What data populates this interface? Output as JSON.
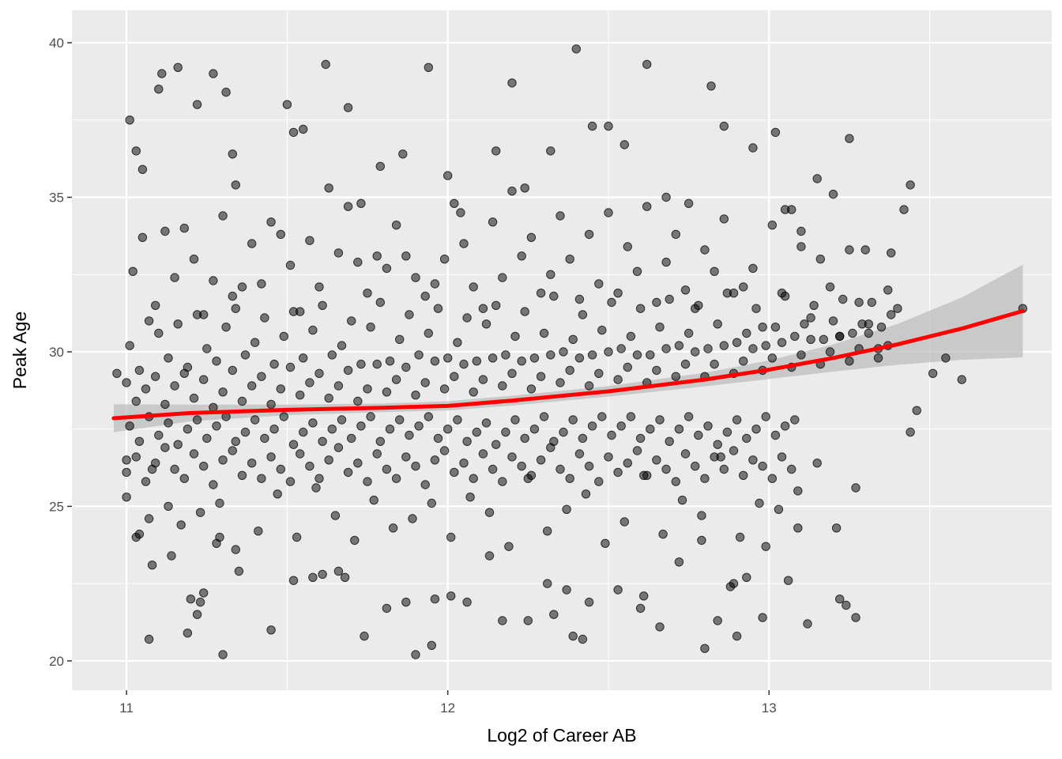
{
  "chart_data": {
    "type": "scatter",
    "title": "",
    "xlabel": "Log2 of Career AB",
    "ylabel": "Peak Age",
    "xlim": [
      10.83,
      13.88
    ],
    "ylim": [
      19.05,
      41.05
    ],
    "x_ticks": [
      11,
      12,
      13
    ],
    "x_tick_labels": [
      "11",
      "12",
      "13"
    ],
    "y_ticks": [
      20,
      25,
      30,
      35,
      40
    ],
    "y_tick_labels": [
      "20",
      "25",
      "30",
      "35",
      "40"
    ],
    "grid": true,
    "legend": "none",
    "colors": {
      "panel_background": "#ebebeb",
      "grid_line": "#ffffff",
      "point": "#000000",
      "smooth_line": "#ff0000",
      "confidence_band": "#bdbdbd"
    },
    "point_alpha": 0.5,
    "smooth": {
      "x": [
        10.96,
        11.2,
        11.5,
        11.8,
        12.0,
        12.2,
        12.5,
        12.8,
        13.0,
        13.2,
        13.4,
        13.6,
        13.79
      ],
      "y": [
        27.85,
        28.02,
        28.12,
        28.19,
        28.25,
        28.42,
        28.72,
        29.1,
        29.42,
        29.8,
        30.24,
        30.75,
        31.32
      ],
      "lower": [
        27.4,
        27.75,
        27.95,
        28.05,
        28.1,
        28.26,
        28.55,
        28.88,
        29.12,
        29.36,
        29.58,
        29.74,
        29.82
      ],
      "upper": [
        28.3,
        28.29,
        28.29,
        28.33,
        28.4,
        28.58,
        28.89,
        29.32,
        29.72,
        30.24,
        30.9,
        31.76,
        32.82
      ]
    },
    "series": [
      {
        "x": [
          11.07,
          11.08,
          11.23,
          11.19,
          11.24,
          11.3,
          11.61,
          11.68,
          11.9,
          11.95,
          12.17,
          12.33,
          12.37,
          12.39,
          12.6,
          12.8,
          12.88,
          12.89,
          12.9,
          12.98,
          13.27,
          13.44,
          13.51,
          13.79,
          11.03,
          11.05,
          11.01,
          11.11,
          11.1,
          11.16,
          11.22,
          11.27,
          11.31,
          11.33,
          11.34,
          11.5,
          11.52,
          11.55,
          11.62,
          11.69,
          11.73,
          11.79,
          11.86,
          11.94,
          12.0,
          12.04,
          12.15,
          12.2,
          12.24,
          12.32,
          12.4,
          12.45,
          12.5,
          12.55,
          12.62,
          12.68,
          12.75,
          12.82,
          12.86,
          12.95,
          13.02,
          13.05,
          13.1,
          13.15,
          13.2,
          13.25,
          13.3,
          13.38,
          13.42,
          13.44,
          13.46,
          13.55,
          13.6,
          11.07,
          11.14,
          11.2,
          11.22,
          11.28,
          11.29,
          11.35,
          11.45,
          11.52,
          11.58,
          11.66,
          11.74,
          11.81,
          11.87,
          11.96,
          12.01,
          12.06,
          12.13,
          12.25,
          12.31,
          12.42,
          12.44,
          12.53,
          12.61,
          12.66,
          12.72,
          12.79,
          12.84,
          12.93,
          12.99,
          13.06,
          13.09,
          13.12,
          13.22,
          13.24,
          10.97,
          11.0,
          11.03
        ],
        "y": [
          20.7,
          23.1,
          21.9,
          20.9,
          22.2,
          20.2,
          22.8,
          22.7,
          20.2,
          20.5,
          21.3,
          21.5,
          22.3,
          20.8,
          21.7,
          20.4,
          22.4,
          22.5,
          20.8,
          21.4,
          21.4,
          27.4,
          29.3,
          31.4,
          36.5,
          35.9,
          37.5,
          39.0,
          38.5,
          39.2,
          38.0,
          39.0,
          38.4,
          36.4,
          35.4,
          38.0,
          37.1,
          37.2,
          39.3,
          37.9,
          34.8,
          36.0,
          36.4,
          39.2,
          35.7,
          34.5,
          36.5,
          38.7,
          35.3,
          36.5,
          39.8,
          37.3,
          37.3,
          36.7,
          39.3,
          35.0,
          34.8,
          38.6,
          37.3,
          36.6,
          37.1,
          34.6,
          33.9,
          35.6,
          35.1,
          36.9,
          33.3,
          33.2,
          34.6,
          35.4,
          28.1,
          29.8,
          29.1,
          24.6,
          23.4,
          22.0,
          21.5,
          23.8,
          24.0,
          22.9,
          21.0,
          22.6,
          22.7,
          22.9,
          20.8,
          21.7,
          21.9,
          22.0,
          22.1,
          21.9,
          23.4,
          21.3,
          22.5,
          20.7,
          21.9,
          22.3,
          22.1,
          21.1,
          23.2,
          23.9,
          21.3,
          22.7,
          23.7,
          22.6,
          24.3,
          21.2,
          22.0,
          21.8,
          29.3,
          26.5,
          24.0
        ],
        "group": "sparse_outer"
      },
      {
        "x": [
          11.02,
          11.05,
          11.09,
          11.12,
          11.15,
          11.18,
          11.21,
          11.24,
          11.27,
          11.3,
          11.33,
          11.36,
          11.39,
          11.42,
          11.45,
          11.48,
          11.51,
          11.54,
          11.57,
          11.6,
          11.63,
          11.66,
          11.69,
          11.72,
          11.75,
          11.78,
          11.81,
          11.84,
          11.87,
          11.9,
          11.93,
          11.96,
          11.99,
          12.02,
          12.05,
          12.08,
          12.11,
          12.14,
          12.17,
          12.2,
          12.23,
          12.26,
          12.29,
          12.32,
          12.35,
          12.38,
          12.41,
          12.44,
          12.47,
          12.5,
          12.53,
          12.56,
          12.59,
          12.62,
          12.65,
          12.68,
          12.71,
          12.74,
          12.77,
          12.8,
          12.83,
          12.86,
          12.89,
          12.92,
          12.95,
          12.98,
          13.01,
          13.04,
          13.07,
          13.1,
          13.13,
          13.16,
          13.19,
          13.22,
          13.25,
          13.28,
          13.31,
          13.34,
          13.37,
          13.4,
          11.0,
          11.04,
          11.08,
          11.13,
          11.17,
          11.23,
          11.29,
          11.34,
          11.41,
          11.47,
          11.53,
          11.59,
          11.65,
          11.71,
          11.77,
          11.83,
          11.89,
          11.95,
          12.01,
          12.07,
          12.13,
          12.19,
          12.25,
          12.31,
          12.37,
          12.43,
          12.49,
          12.55,
          12.61,
          12.67,
          12.73,
          12.79,
          12.85,
          12.91,
          12.97,
          13.03,
          13.09,
          13.15,
          13.21,
          13.27
        ],
        "y": [
          32.6,
          33.7,
          31.5,
          33.9,
          32.4,
          34.0,
          33.0,
          31.2,
          32.3,
          34.4,
          31.8,
          32.1,
          33.5,
          32.2,
          34.2,
          33.8,
          32.8,
          31.3,
          33.6,
          32.1,
          35.3,
          33.2,
          34.7,
          32.9,
          31.9,
          33.1,
          32.7,
          34.1,
          33.1,
          32.4,
          31.8,
          32.2,
          33.0,
          34.8,
          33.5,
          32.1,
          31.4,
          34.2,
          32.4,
          35.2,
          33.1,
          33.7,
          31.9,
          32.5,
          34.4,
          33.0,
          31.7,
          33.8,
          32.2,
          34.5,
          31.9,
          33.4,
          32.6,
          34.7,
          31.6,
          32.9,
          33.8,
          32.0,
          31.4,
          33.3,
          32.6,
          34.3,
          31.9,
          32.1,
          32.7,
          30.8,
          34.1,
          31.9,
          34.6,
          33.4,
          31.1,
          33.0,
          32.1,
          30.5,
          33.3,
          31.6,
          30.9,
          30.1,
          32.0,
          31.4,
          25.3,
          24.1,
          26.2,
          25.0,
          24.4,
          24.8,
          25.1,
          23.6,
          24.2,
          25.4,
          24.0,
          25.6,
          24.7,
          23.9,
          25.2,
          24.3,
          24.6,
          25.1,
          24.0,
          25.3,
          24.8,
          23.7,
          25.9,
          24.2,
          24.9,
          25.4,
          23.8,
          24.5,
          26.0,
          24.1,
          25.2,
          24.7,
          26.6,
          24.0,
          25.1,
          24.9,
          25.5,
          26.4,
          24.3,
          25.6
        ],
        "group": "band_edges"
      },
      {
        "x": [
          11.01,
          11.04,
          11.07,
          11.1,
          11.13,
          11.16,
          11.19,
          11.22,
          11.25,
          11.28,
          11.31,
          11.34,
          11.37,
          11.4,
          11.43,
          11.46,
          11.49,
          11.52,
          11.55,
          11.58,
          11.61,
          11.64,
          11.67,
          11.7,
          11.73,
          11.76,
          11.79,
          11.82,
          11.85,
          11.88,
          11.91,
          11.94,
          11.97,
          12.0,
          12.03,
          12.06,
          12.09,
          12.12,
          12.15,
          12.18,
          12.21,
          12.24,
          12.27,
          12.3,
          12.33,
          12.36,
          12.39,
          12.42,
          12.45,
          12.48,
          12.51,
          12.54,
          12.57,
          12.6,
          12.63,
          12.66,
          12.69,
          12.72,
          12.75,
          12.78,
          12.81,
          12.84,
          12.87,
          12.9,
          12.93,
          12.96,
          12.99,
          13.02,
          13.05,
          13.08,
          13.11,
          13.14,
          13.17,
          13.2,
          13.23,
          13.26,
          13.29,
          13.32,
          13.35,
          13.38
        ],
        "y": [
          30.2,
          29.4,
          31.0,
          30.6,
          29.8,
          30.9,
          29.5,
          31.2,
          30.1,
          29.7,
          30.8,
          31.4,
          29.9,
          30.3,
          31.1,
          29.6,
          30.5,
          31.3,
          29.8,
          30.7,
          31.5,
          29.9,
          30.2,
          31.0,
          29.6,
          30.8,
          31.6,
          29.7,
          30.4,
          31.2,
          29.9,
          30.6,
          31.4,
          29.8,
          30.3,
          31.1,
          29.7,
          30.9,
          31.5,
          29.9,
          30.5,
          31.3,
          29.8,
          30.6,
          31.8,
          30.0,
          30.4,
          31.2,
          29.9,
          30.7,
          31.6,
          30.1,
          30.5,
          31.4,
          29.9,
          30.8,
          31.7,
          30.2,
          30.6,
          31.5,
          30.1,
          30.9,
          31.9,
          30.3,
          30.6,
          31.4,
          30.2,
          30.8,
          31.8,
          30.5,
          30.9,
          31.5,
          30.4,
          31.0,
          31.7,
          30.6,
          30.9,
          31.6,
          30.8,
          31.2
        ],
        "group": "upper_core"
      },
      {
        "x": [
          11.0,
          11.03,
          11.06,
          11.09,
          11.12,
          11.15,
          11.18,
          11.21,
          11.24,
          11.27,
          11.3,
          11.33,
          11.36,
          11.39,
          11.42,
          11.45,
          11.48,
          11.51,
          11.54,
          11.57,
          11.6,
          11.63,
          11.66,
          11.69,
          11.72,
          11.75,
          11.78,
          11.81,
          11.84,
          11.87,
          11.9,
          11.93,
          11.96,
          11.99,
          12.02,
          12.05,
          12.08,
          12.11,
          12.14,
          12.17,
          12.2,
          12.23,
          12.26,
          12.29,
          12.32,
          12.35,
          12.38,
          12.41,
          12.44,
          12.47,
          12.5,
          12.53,
          12.56,
          12.59,
          12.62,
          12.65,
          12.68,
          12.71,
          12.74,
          12.77,
          12.8,
          12.83,
          12.86,
          12.89,
          12.92,
          12.95,
          12.98,
          13.01,
          13.04,
          13.07,
          13.1,
          13.13,
          13.16,
          13.19,
          13.22,
          13.25,
          13.28,
          13.31,
          13.34,
          13.37
        ],
        "y": [
          29.0,
          28.4,
          28.8,
          29.2,
          28.3,
          28.9,
          29.3,
          28.5,
          29.1,
          28.2,
          28.7,
          29.4,
          28.4,
          28.9,
          29.2,
          28.3,
          28.8,
          29.5,
          28.6,
          29.0,
          29.3,
          28.5,
          28.9,
          29.4,
          28.4,
          28.8,
          29.6,
          28.7,
          29.1,
          29.5,
          28.6,
          29.0,
          29.7,
          28.8,
          29.2,
          29.6,
          28.7,
          29.1,
          29.8,
          28.9,
          29.3,
          29.7,
          28.8,
          29.2,
          29.9,
          29.0,
          29.4,
          29.8,
          28.9,
          29.3,
          30.0,
          29.1,
          29.5,
          29.9,
          29.0,
          29.4,
          30.1,
          29.2,
          29.6,
          30.0,
          29.2,
          29.6,
          30.2,
          29.3,
          29.7,
          30.1,
          29.4,
          29.8,
          30.3,
          29.5,
          29.9,
          30.4,
          29.6,
          30.0,
          30.5,
          29.7,
          30.1,
          30.6,
          29.8,
          30.2
        ],
        "group": "mid_upper"
      },
      {
        "x": [
          11.01,
          11.04,
          11.07,
          11.1,
          11.13,
          11.16,
          11.19,
          11.22,
          11.25,
          11.28,
          11.31,
          11.34,
          11.37,
          11.4,
          11.43,
          11.46,
          11.49,
          11.52,
          11.55,
          11.58,
          11.61,
          11.64,
          11.67,
          11.7,
          11.73,
          11.76,
          11.79,
          11.82,
          11.85,
          11.88,
          11.91,
          11.94,
          11.97,
          12.0,
          12.03,
          12.06,
          12.09,
          12.12,
          12.15,
          12.18,
          12.21,
          12.24,
          12.27,
          12.3,
          12.33,
          12.36,
          12.39,
          12.42,
          12.45,
          12.48,
          12.51,
          12.54,
          12.57,
          12.6,
          12.63,
          12.66,
          12.69,
          12.72,
          12.75,
          12.78,
          12.81,
          12.84,
          12.87,
          12.9,
          12.93,
          12.96,
          12.99,
          13.02,
          13.05,
          13.08
        ],
        "y": [
          27.6,
          27.1,
          27.9,
          27.3,
          27.7,
          27.0,
          27.5,
          27.8,
          27.2,
          27.6,
          27.9,
          27.1,
          27.4,
          27.8,
          27.2,
          27.5,
          27.9,
          27.0,
          27.4,
          27.7,
          27.1,
          27.5,
          27.8,
          27.2,
          27.6,
          27.9,
          27.1,
          27.5,
          27.8,
          27.3,
          27.6,
          27.9,
          27.2,
          27.5,
          27.8,
          27.1,
          27.4,
          27.7,
          27.0,
          27.4,
          27.8,
          27.2,
          27.5,
          27.9,
          27.1,
          27.4,
          27.8,
          27.2,
          27.6,
          27.9,
          27.3,
          27.6,
          27.9,
          27.2,
          27.5,
          27.8,
          27.1,
          27.5,
          27.9,
          27.3,
          27.6,
          27.0,
          27.4,
          27.8,
          27.2,
          27.5,
          27.9,
          27.3,
          27.6,
          27.8
        ],
        "group": "mid_lower"
      },
      {
        "x": [
          11.0,
          11.03,
          11.06,
          11.09,
          11.12,
          11.15,
          11.18,
          11.21,
          11.24,
          11.27,
          11.3,
          11.33,
          11.36,
          11.39,
          11.42,
          11.45,
          11.48,
          11.51,
          11.54,
          11.57,
          11.6,
          11.63,
          11.66,
          11.69,
          11.72,
          11.75,
          11.78,
          11.81,
          11.84,
          11.87,
          11.9,
          11.93,
          11.96,
          11.99,
          12.02,
          12.05,
          12.08,
          12.11,
          12.14,
          12.17,
          12.2,
          12.23,
          12.26,
          12.29,
          12.32,
          12.35,
          12.38,
          12.41,
          12.44,
          12.47,
          12.5,
          12.53,
          12.56,
          12.59,
          12.62,
          12.65,
          12.68,
          12.71,
          12.74,
          12.77,
          12.8,
          12.83,
          12.86,
          12.89,
          12.92,
          12.95,
          12.98,
          13.01,
          13.04,
          13.07
        ],
        "y": [
          26.1,
          26.6,
          25.8,
          26.4,
          26.9,
          26.2,
          25.9,
          26.7,
          26.3,
          25.7,
          26.5,
          26.8,
          26.0,
          26.4,
          25.9,
          26.6,
          26.2,
          25.8,
          26.7,
          26.3,
          25.9,
          26.5,
          26.9,
          26.1,
          26.4,
          25.8,
          26.7,
          26.2,
          25.9,
          26.6,
          26.3,
          25.7,
          26.5,
          26.8,
          26.1,
          26.4,
          25.9,
          26.7,
          26.2,
          25.8,
          26.6,
          26.3,
          26.0,
          26.5,
          26.9,
          26.2,
          25.9,
          26.7,
          26.3,
          25.8,
          26.6,
          26.1,
          26.4,
          26.8,
          26.0,
          26.5,
          26.2,
          25.8,
          26.7,
          26.3,
          25.9,
          26.6,
          26.2,
          26.8,
          26.0,
          26.5,
          26.3,
          25.9,
          26.6,
          26.2
        ],
        "group": "lower_core"
      }
    ]
  }
}
